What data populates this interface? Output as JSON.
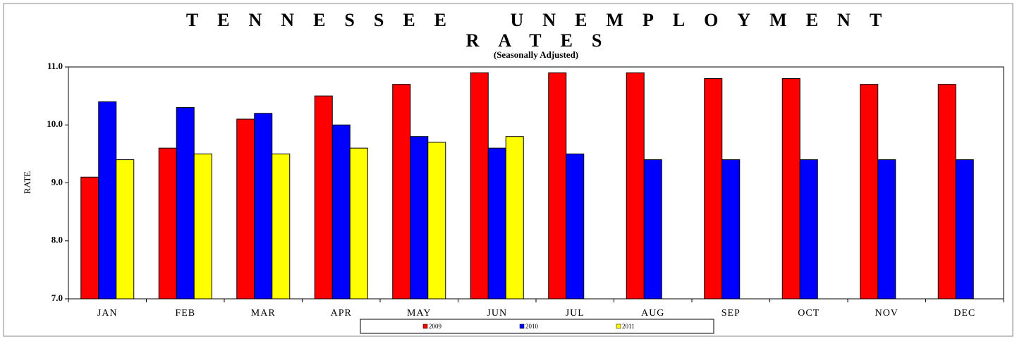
{
  "chart_data": {
    "type": "bar",
    "title": "TENNESSEE UNEMPLOYMENT RATES",
    "subtitle": "(Seasonally Adjusted)",
    "y_label": "RATE",
    "categories": [
      "JAN",
      "FEB",
      "MAR",
      "APR",
      "MAY",
      "JUN",
      "JUL",
      "AUG",
      "SEP",
      "OCT",
      "NOV",
      "DEC"
    ],
    "series": [
      {
        "name": "2009",
        "color": "#ff0000",
        "values": [
          9.1,
          9.6,
          10.1,
          10.5,
          10.7,
          10.9,
          10.9,
          10.9,
          10.8,
          10.8,
          10.7,
          10.7
        ]
      },
      {
        "name": "2010",
        "color": "#0000ff",
        "values": [
          10.4,
          10.3,
          10.2,
          10.0,
          9.8,
          9.6,
          9.5,
          9.4,
          9.4,
          9.4,
          9.4,
          9.4
        ]
      },
      {
        "name": "2011",
        "color": "#ffff00",
        "values": [
          9.4,
          9.5,
          9.5,
          9.6,
          9.7,
          9.8,
          null,
          null,
          null,
          null,
          null,
          null
        ]
      }
    ],
    "ylim": [
      7,
      11
    ],
    "yticks": [
      {
        "value": 7,
        "label": "7.0"
      },
      {
        "value": 8,
        "label": "8.0"
      },
      {
        "value": 9,
        "label": "9.0"
      },
      {
        "value": 10,
        "label": "10.0"
      },
      {
        "value": 11,
        "label": "11.0"
      }
    ],
    "grid": false,
    "legend": "bottom"
  }
}
